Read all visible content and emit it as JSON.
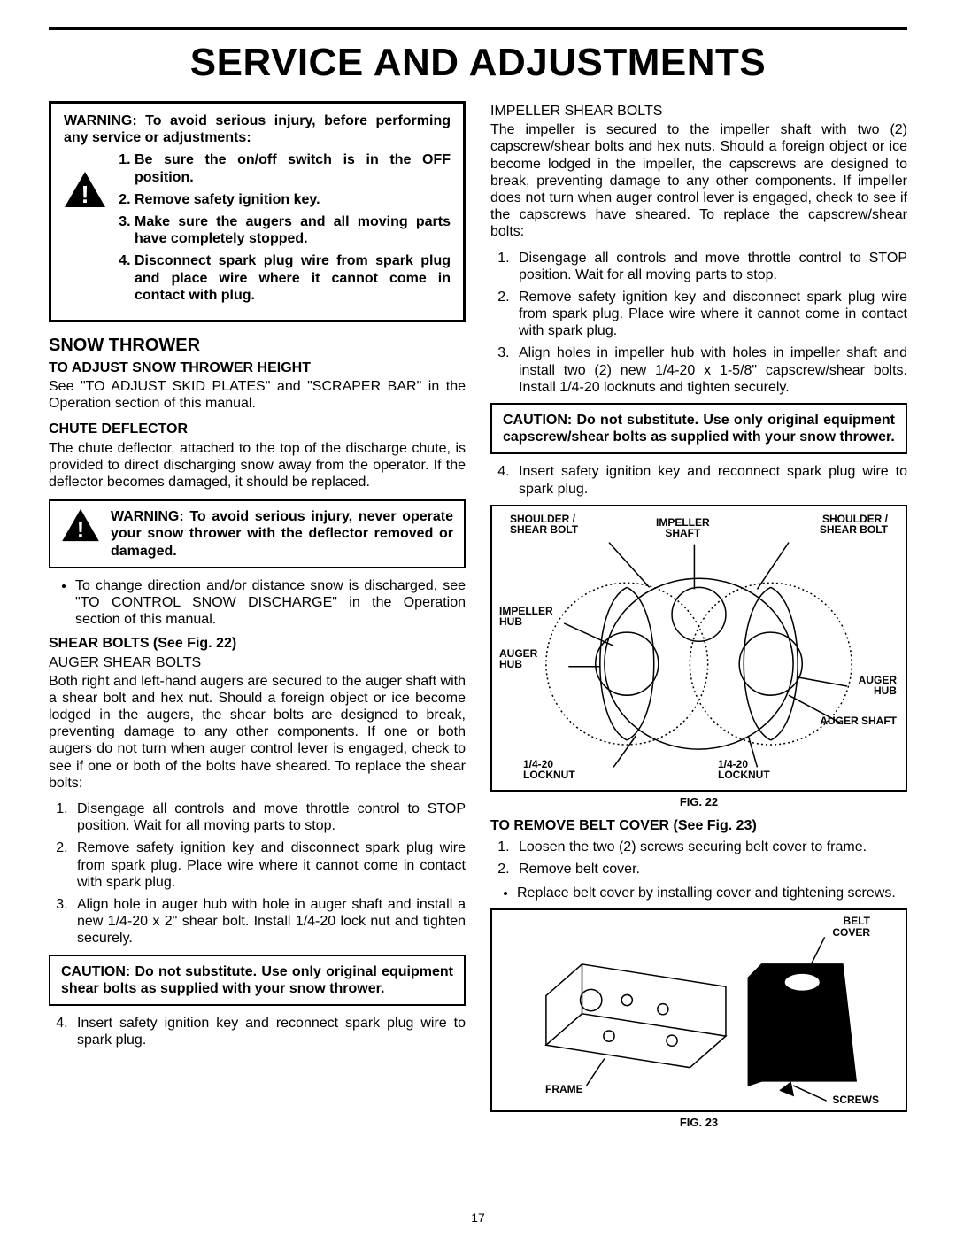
{
  "pageNumber": "17",
  "title": "SERVICE AND ADJUSTMENTS",
  "left": {
    "warningBox": {
      "lead": "WARNING: To avoid serious injury, before performing any service or adjustments:",
      "items": [
        "Be sure the on/off switch is in the OFF position.",
        "Remove safety ignition key.",
        "Make sure the augers and all moving parts have completely stopped.",
        "Disconnect spark plug wire from spark plug and place wire where it cannot come in contact with plug."
      ]
    },
    "sectionHeading": "SNOW THROWER",
    "adjustHeight": {
      "head": "TO ADJUST SNOW THROWER HEIGHT",
      "body": "See \"TO ADJUST SKID PLATES\" and \"SCRAPER BAR\" in the Operation section of this manual."
    },
    "chute": {
      "head": "CHUTE DEFLECTOR",
      "body": "The chute deflector, attached to the top of the discharge chute, is provided to direct discharging snow away from the operator. If the deflector becomes damaged, it should be replaced."
    },
    "warnDeflector": "WARNING: To avoid serious injury, never operate your snow thrower with the deflector removed or damaged.",
    "bullet1": "To change direction and/or distance snow is discharged, see \"TO CONTROL SNOW DISCHARGE\" in the Operation section of this manual.",
    "shearHead": "SHEAR BOLTS (See Fig. 22)",
    "augerHead": "AUGER SHEAR BOLTS",
    "augerBody": "Both right and left-hand augers are secured to the auger shaft with a shear bolt and hex nut. Should a foreign object or ice become lodged in the augers, the shear bolts are designed to break, preventing damage to any other components. If one or both augers do not turn when auger control lever is engaged, check to see if one or both of the bolts have sheared. To replace the shear bolts:",
    "augerSteps": [
      "Disengage all controls and move throttle control to STOP position. Wait for all moving parts to stop.",
      "Remove safety ignition key and disconnect spark plug wire from spark plug.  Place wire where it cannot come in contact with spark plug.",
      "Align hole in auger hub with hole in auger shaft and install a new 1/4-20 x 2\" shear bolt.  Install 1/4-20 lock nut and tighten securely."
    ],
    "caution1": "CAUTION: Do not substitute. Use only original equipment shear bolts as supplied with your snow thrower.",
    "augerStep4": "Insert safety ignition key and reconnect spark plug wire to spark plug."
  },
  "right": {
    "impHead": "IMPELLER SHEAR BOLTS",
    "impBody": "The impeller is secured to the impeller shaft with two (2) capscrew/shear bolts and hex nuts. Should a foreign object or ice become lodged in the impeller, the capscrews are designed to break, preventing damage to any other components. If impeller does not turn when auger control lever is engaged, check to see if the capscrews have sheared. To replace the capscrew/shear bolts:",
    "impSteps": [
      "Disengage all controls and move throttle control to STOP position. Wait for all moving parts to stop.",
      "Remove safety ignition key and disconnect spark plug wire from spark plug.  Place wire where it cannot come in contact with spark plug.",
      "Align holes in impeller hub with holes in impeller shaft and install two (2) new 1/4-20 x 1-5/8\" capscrew/shear bolts. Install 1/4-20 locknuts and tighten securely."
    ],
    "caution2": "CAUTION: Do not substitute. Use only original equipment capscrew/shear bolts as supplied with your snow thrower.",
    "impStep4": "Insert safety ignition key and reconnect spark plug wire to spark plug.",
    "fig22": {
      "labels": {
        "shoulderBoltL": "SHOULDER /\nSHEAR BOLT",
        "shoulderBoltR": "SHOULDER /\nSHEAR BOLT",
        "impellerShaft": "IMPELLER\nSHAFT",
        "impellerHub": "IMPELLER\nHUB",
        "augerHubL": "AUGER\nHUB",
        "augerHubR": "AUGER\nHUB",
        "augerShaft": "AUGER SHAFT",
        "locknutL": "1/4-20\nLOCKNUT",
        "locknutR": "1/4-20\nLOCKNUT"
      },
      "caption": "FIG. 22"
    },
    "beltHead": "TO REMOVE BELT COVER (See Fig. 23)",
    "beltSteps": [
      "Loosen the two (2) screws securing belt cover to frame.",
      "Remove belt cover."
    ],
    "beltBullet": "Replace belt cover by installing cover and tightening screws.",
    "fig23": {
      "labels": {
        "beltCover": "BELT\nCOVER",
        "frame": "FRAME",
        "screws": "SCREWS"
      },
      "caption": "FIG. 23"
    }
  }
}
